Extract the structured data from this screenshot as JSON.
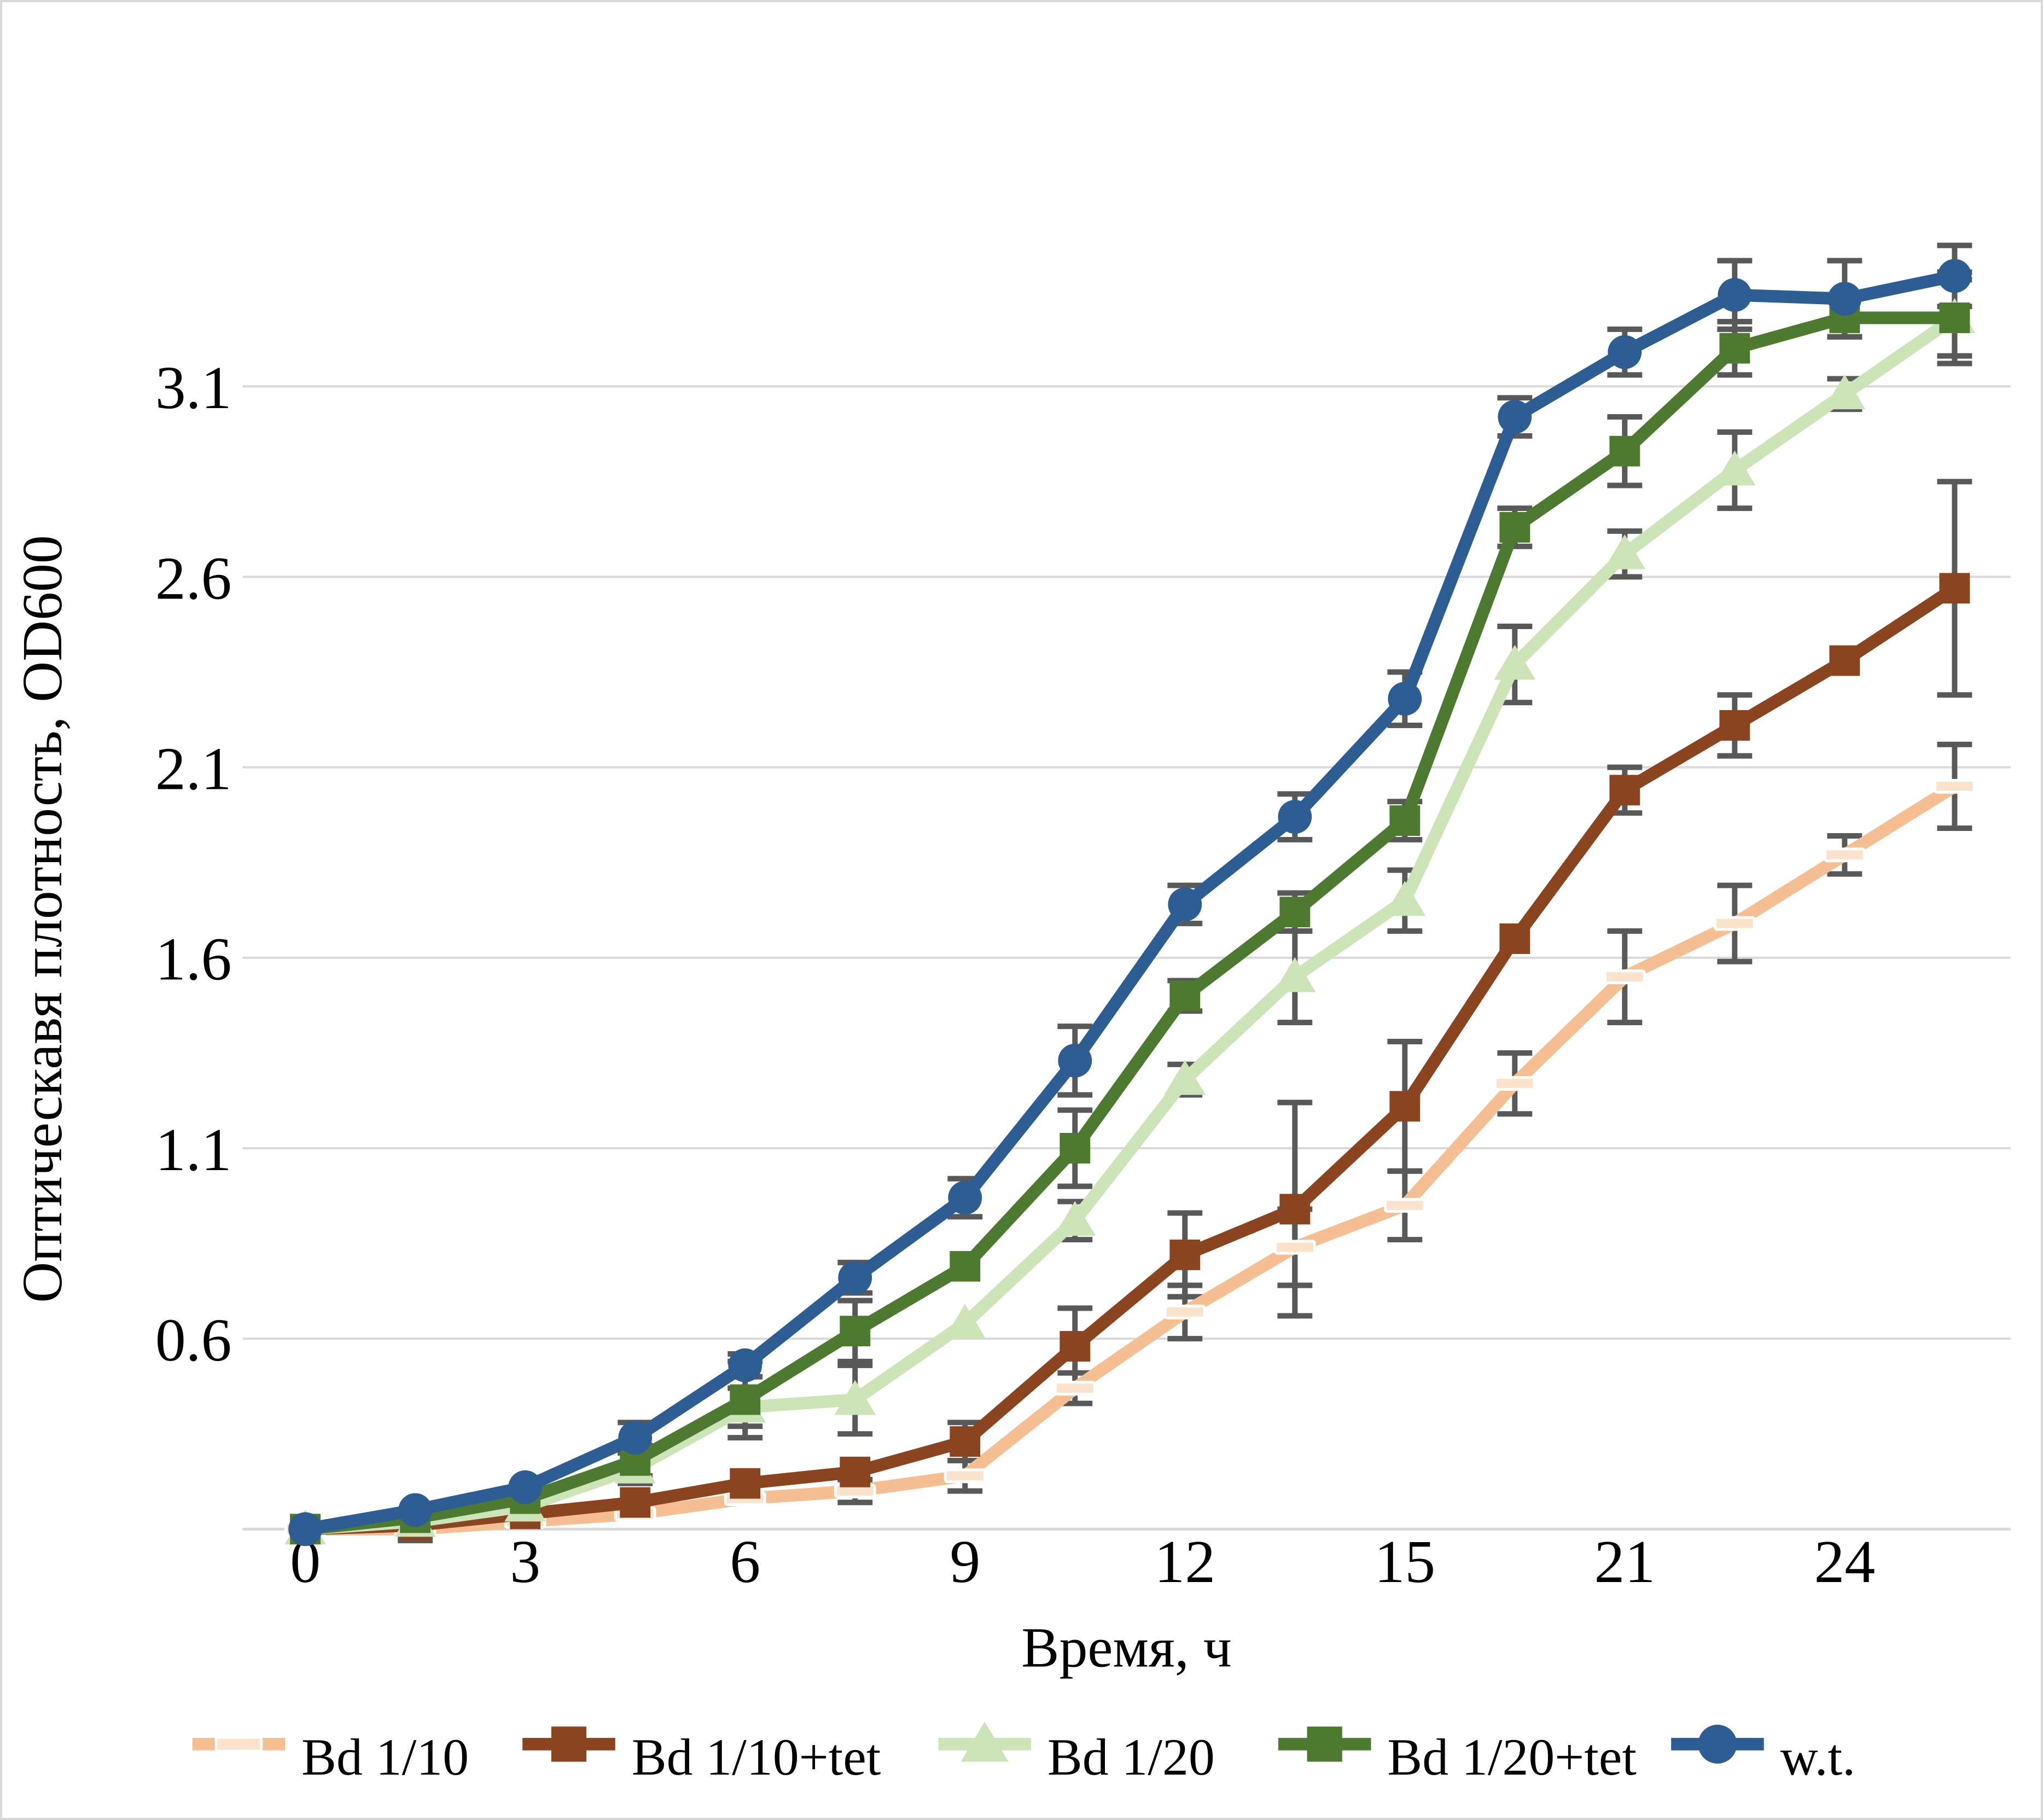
{
  "figure": {
    "y_axis_title": "Оптическавя плотность, OD600",
    "x_axis_title": "Время, ч"
  },
  "chart_data": {
    "type": "line",
    "title": "",
    "xlabel": "Время, ч",
    "ylabel": "Оптическавя плотность, OD600",
    "x_hours": [
      0,
      1.5,
      3,
      4.5,
      6,
      7.5,
      9,
      10.5,
      12,
      13.5,
      15,
      18,
      21,
      22.5,
      24,
      25.5
    ],
    "x_tick_labels": [
      "0",
      "3",
      "6",
      "9",
      "12",
      "15",
      "21",
      "24"
    ],
    "y_tick_labels": [
      "0.6",
      "1.1",
      "1.6",
      "2.1",
      "2.6",
      "3.1"
    ],
    "y_ticks": [
      0.6,
      1.1,
      1.6,
      2.1,
      2.6,
      3.1
    ],
    "ylim": [
      0.1,
      3.6
    ],
    "grid": "horizontal",
    "gridline_color": "#d9d9d9",
    "error_bar_color": "#595959",
    "legend_position": "bottom",
    "series": [
      {
        "name": "Bd 1/10",
        "color": "#f5be93",
        "marker": "dash",
        "marker_fill": "#fbe3ce",
        "values": [
          0.1,
          0.1,
          0.12,
          0.14,
          0.18,
          0.2,
          0.24,
          0.47,
          0.67,
          0.84,
          0.95,
          1.27,
          1.55,
          1.69,
          1.87,
          2.05
        ],
        "errors": [
          0,
          0.03,
          0,
          0,
          0,
          0.03,
          0.04,
          0.04,
          0.07,
          0.1,
          0.09,
          0.08,
          0.12,
          0.1,
          0.05,
          0.11
        ]
      },
      {
        "name": "Bd 1/10+tet",
        "color": "#8a4420",
        "marker": "square",
        "values": [
          0.1,
          0.11,
          0.14,
          0.17,
          0.22,
          0.25,
          0.33,
          0.58,
          0.82,
          0.94,
          1.21,
          1.65,
          2.04,
          2.21,
          2.38,
          2.57
        ],
        "errors": [
          0,
          0.03,
          0,
          0,
          0,
          0,
          0.05,
          0.1,
          0.11,
          0.28,
          0.17,
          0,
          0.06,
          0.08,
          0,
          0.28
        ]
      },
      {
        "name": "Bd 1/20",
        "color": "#cde4b8",
        "marker": "triangle",
        "values": [
          0.1,
          0.12,
          0.16,
          0.26,
          0.42,
          0.44,
          0.64,
          0.91,
          1.28,
          1.55,
          1.75,
          2.37,
          2.66,
          2.88,
          3.08,
          3.28
        ],
        "errors": [
          0,
          0,
          0,
          0.04,
          0.05,
          0.09,
          0,
          0.05,
          0.04,
          0.12,
          0.08,
          0.1,
          0.06,
          0.1,
          0.04,
          0.1
        ]
      },
      {
        "name": "Bd 1/20+tet",
        "color": "#4d7931",
        "marker": "square",
        "values": [
          0.1,
          0.13,
          0.18,
          0.28,
          0.44,
          0.62,
          0.79,
          1.1,
          1.5,
          1.72,
          1.96,
          2.73,
          2.93,
          3.2,
          3.28,
          3.28
        ],
        "errors": [
          0,
          0,
          0,
          0.04,
          0.1,
          0.08,
          0,
          0.1,
          0.04,
          0.05,
          0.05,
          0.05,
          0.09,
          0.07,
          0.05,
          0.12
        ]
      },
      {
        "name": "w.t.",
        "color": "#2d5d92",
        "marker": "circle",
        "values": [
          0.1,
          0.15,
          0.21,
          0.34,
          0.53,
          0.76,
          0.97,
          1.33,
          1.74,
          1.97,
          2.28,
          3.02,
          3.19,
          3.34,
          3.33,
          3.39
        ],
        "errors": [
          0,
          0,
          0,
          0.04,
          0.03,
          0.04,
          0.05,
          0.09,
          0.05,
          0.06,
          0.07,
          0.05,
          0.06,
          0.09,
          0.1,
          0.08
        ]
      }
    ]
  }
}
